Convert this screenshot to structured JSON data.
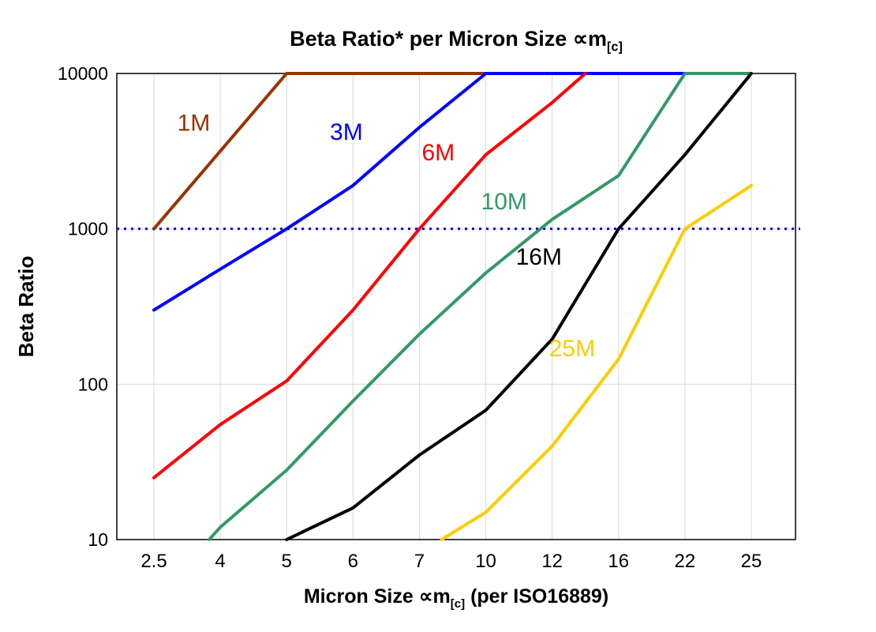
{
  "title": {
    "pre": "Beta Ratio* per Micron Size ∝m",
    "sub": "[c]"
  },
  "xlabel": {
    "pre": "Micron Size ∝m",
    "sub": "[c]",
    "post": " (per ISO16889)"
  },
  "ylabel": "Beta Ratio",
  "chart_data": {
    "type": "line",
    "title": "Beta Ratio* per Micron Size ∝m[c]",
    "x_scale": "categorical",
    "y_scale": "log",
    "x_ticks": [
      2.5,
      4,
      5,
      6,
      7,
      10,
      12,
      16,
      22,
      25
    ],
    "y_ticks": [
      10,
      100,
      1000,
      10000
    ],
    "ylim": [
      10,
      10000
    ],
    "grid": {
      "vertical": true,
      "horizontal_at": [
        100,
        1000
      ],
      "color": "#d9d9d9"
    },
    "reference_line": {
      "y": 1000,
      "style": "dotted",
      "color": "#0000ff"
    },
    "legend_position": "inline-labels",
    "series": [
      {
        "name": "1M",
        "color": "#993300",
        "label_pos": [
          3.4,
          4800
        ],
        "points": [
          [
            2.5,
            1000
          ],
          [
            4,
            3162
          ],
          [
            5,
            10000
          ],
          [
            6,
            10000
          ],
          [
            7,
            10000
          ],
          [
            10,
            10000
          ]
        ]
      },
      {
        "name": "3M",
        "color": "#0000ff",
        "label_pos": [
          5.9,
          4200
        ],
        "points": [
          [
            2.5,
            300
          ],
          [
            4,
            550
          ],
          [
            5,
            1000
          ],
          [
            6,
            1900
          ],
          [
            7,
            4500
          ],
          [
            10,
            10000
          ],
          [
            12,
            10000
          ],
          [
            16,
            10000
          ],
          [
            22,
            10000
          ]
        ]
      },
      {
        "name": "6M",
        "color": "#ff0000",
        "label_pos": [
          7.85,
          3100
        ],
        "points": [
          [
            2.5,
            25
          ],
          [
            4,
            55
          ],
          [
            5,
            105
          ],
          [
            6,
            300
          ],
          [
            7,
            1000
          ],
          [
            10,
            3000
          ],
          [
            12,
            6500
          ],
          [
            14,
            10000
          ]
        ]
      },
      {
        "name": "10M",
        "color": "#339966",
        "label_pos": [
          10.55,
          1500
        ],
        "points": [
          [
            3.75,
            10
          ],
          [
            4,
            12
          ],
          [
            5,
            28
          ],
          [
            6,
            78
          ],
          [
            7,
            210
          ],
          [
            10,
            520
          ],
          [
            12,
            1150
          ],
          [
            16,
            2200
          ],
          [
            22,
            10000
          ],
          [
            25,
            10000
          ]
        ]
      },
      {
        "name": "16M",
        "color": "#000000",
        "label_pos": [
          11.6,
          660
        ],
        "points": [
          [
            5,
            10
          ],
          [
            6,
            16
          ],
          [
            7,
            35
          ],
          [
            10,
            68
          ],
          [
            12,
            195
          ],
          [
            16,
            1000
          ],
          [
            22,
            3000
          ],
          [
            25,
            10000
          ]
        ]
      },
      {
        "name": "25M",
        "color": "#ffcc00",
        "label_pos": [
          13.2,
          170
        ],
        "points": [
          [
            8,
            10
          ],
          [
            10,
            15
          ],
          [
            12,
            40
          ],
          [
            16,
            145
          ],
          [
            22,
            1000
          ],
          [
            25,
            1900
          ]
        ]
      }
    ]
  }
}
